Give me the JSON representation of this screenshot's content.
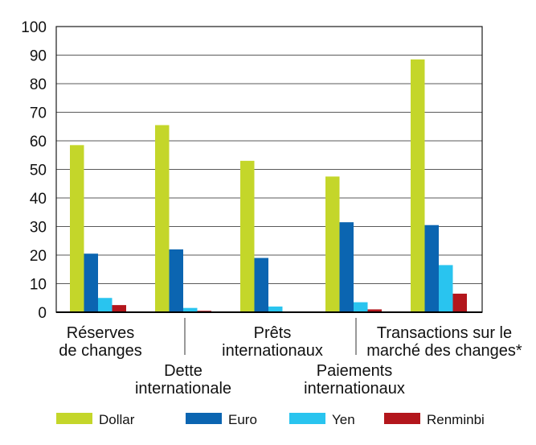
{
  "chart_data": {
    "type": "bar",
    "title": "",
    "xlabel": "",
    "ylabel": "",
    "ylim": [
      0,
      100
    ],
    "yticks": [
      "0",
      "10",
      "20",
      "30",
      "40",
      "50",
      "60",
      "70",
      "80",
      "90",
      "100"
    ],
    "grid": true,
    "legend_position": "bottom",
    "categories": [
      [
        "Réserves",
        "de changes"
      ],
      [
        "Dette",
        "internationale"
      ],
      [
        "Prêts",
        "internationaux"
      ],
      [
        "Paiements",
        "internationaux"
      ],
      [
        "Transactions sur le",
        "marché des changes*"
      ]
    ],
    "series": [
      {
        "name": "Dollar",
        "color": "#c4d62a",
        "values": [
          58.5,
          65.5,
          53,
          47.5,
          88.5
        ]
      },
      {
        "name": "Euro",
        "color": "#0b65b1",
        "values": [
          20.5,
          22,
          19,
          31.5,
          30.5
        ]
      },
      {
        "name": "Yen",
        "color": "#29c4ef",
        "values": [
          5,
          1.5,
          2,
          3.5,
          16.5
        ]
      },
      {
        "name": "Renminbi",
        "color": "#b3161c",
        "values": [
          2.5,
          0.5,
          0,
          1,
          6.5
        ]
      }
    ]
  }
}
